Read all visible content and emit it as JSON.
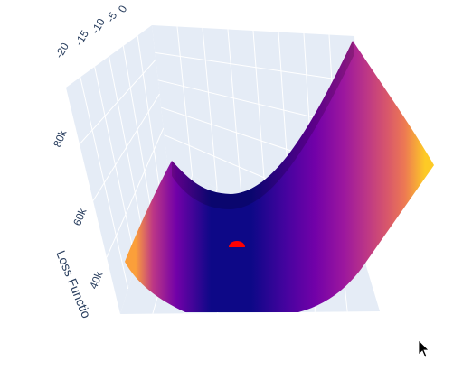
{
  "chart_data": {
    "type": "surface",
    "title": "",
    "z_axis": {
      "label": "Loss Functio",
      "tick_labels": [
        "40k",
        "60k",
        "80k"
      ],
      "tick_values": [
        40000,
        60000,
        80000
      ]
    },
    "y_axis": {
      "tick_labels": [
        "-20",
        "-15",
        "-10",
        "-5",
        "0"
      ],
      "tick_values": [
        -20,
        -15,
        -10,
        -5,
        0
      ]
    },
    "surface": {
      "shape": "parabolic valley (loss surface)",
      "colorscale": "plasma",
      "colors": [
        "#0d0887",
        "#46039f",
        "#7201a8",
        "#9c179e",
        "#bd3786",
        "#d8576b",
        "#ed7953",
        "#fb9f3a",
        "#fdca26",
        "#f0f921"
      ]
    },
    "minimum_marker": {
      "color": "#ff0000"
    },
    "background": {
      "scene": "#e5ecf6",
      "grid": "#ffffff"
    }
  }
}
